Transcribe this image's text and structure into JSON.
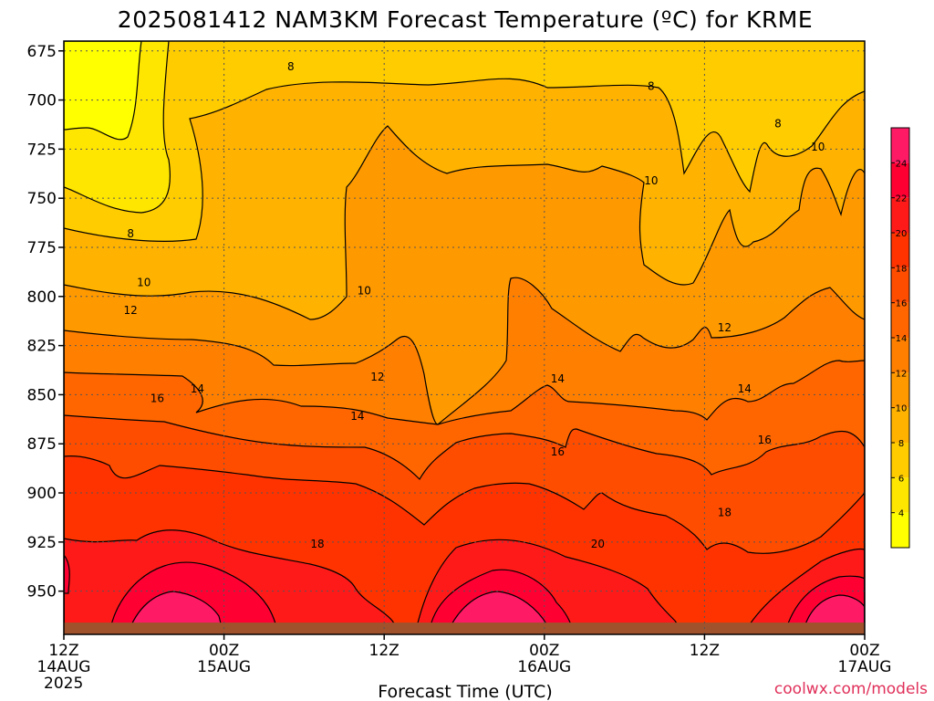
{
  "chart_data": {
    "type": "heatmap",
    "title": "2025081412 NAM3KM Forecast Temperature (ºC) for KRME",
    "xlabel": "Forecast Time (UTC)",
    "ylabel": "",
    "credit": "coolwx.com/models",
    "x_ticks": [
      {
        "hours": 0,
        "label": "12Z",
        "sub": "14AUG",
        "sub2": "2025"
      },
      {
        "hours": 12,
        "label": "00Z",
        "sub": "15AUG",
        "sub2": ""
      },
      {
        "hours": 24,
        "label": "12Z",
        "sub": "",
        "sub2": ""
      },
      {
        "hours": 36,
        "label": "00Z",
        "sub": "16AUG",
        "sub2": ""
      },
      {
        "hours": 48,
        "label": "12Z",
        "sub": "",
        "sub2": ""
      },
      {
        "hours": 60,
        "label": "00Z",
        "sub": "17AUG",
        "sub2": ""
      }
    ],
    "xlim_hours": [
      0,
      60
    ],
    "y_ticks": [
      {
        "value": 675,
        "label": "675"
      },
      {
        "value": 700,
        "label": "700"
      },
      {
        "value": 725,
        "label": "725"
      },
      {
        "value": 750,
        "label": "750"
      },
      {
        "value": 775,
        "label": "775"
      },
      {
        "value": 800,
        "label": "800"
      },
      {
        "value": 825,
        "label": "825"
      },
      {
        "value": 850,
        "label": "850"
      },
      {
        "value": 875,
        "label": "875"
      },
      {
        "value": 900,
        "label": "900"
      },
      {
        "value": 925,
        "label": "925"
      },
      {
        "value": 950,
        "label": "950"
      }
    ],
    "ylim_hpa": [
      670,
      972
    ],
    "surface_hpa": 966,
    "grid": true,
    "colorbar": {
      "placement": "right",
      "levels": [
        2,
        4,
        6,
        8,
        10,
        12,
        14,
        16,
        18,
        20,
        22,
        24,
        26
      ],
      "colors": [
        "#ffff00",
        "#ffe600",
        "#ffcc00",
        "#ffb300",
        "#ff9900",
        "#ff8000",
        "#ff6600",
        "#ff4d00",
        "#ff3300",
        "#ff1a1a",
        "#ff0033",
        "#ff1a66"
      ],
      "tick_labels": [
        "4",
        "6",
        "8",
        "10",
        "12",
        "14",
        "16",
        "18",
        "20",
        "22",
        "24"
      ]
    },
    "colors": {
      "terrain": "#a0522d",
      "contour": "#000000"
    },
    "contour_labels": [
      {
        "text": "8",
        "hours": 17.0,
        "hpa": 683
      },
      {
        "text": "8",
        "hours": 44.0,
        "hpa": 693
      },
      {
        "text": "8",
        "hours": 53.5,
        "hpa": 712
      },
      {
        "text": "10",
        "hours": 56.5,
        "hpa": 724
      },
      {
        "text": "10",
        "hours": 44.0,
        "hpa": 741
      },
      {
        "text": "8",
        "hours": 5.0,
        "hpa": 768
      },
      {
        "text": "10",
        "hours": 6.0,
        "hpa": 793
      },
      {
        "text": "10",
        "hours": 22.5,
        "hpa": 797
      },
      {
        "text": "12",
        "hours": 5.0,
        "hpa": 807
      },
      {
        "text": "12",
        "hours": 49.5,
        "hpa": 816
      },
      {
        "text": "12",
        "hours": 23.5,
        "hpa": 841
      },
      {
        "text": "14",
        "hours": 37.0,
        "hpa": 842
      },
      {
        "text": "14",
        "hours": 51.0,
        "hpa": 847
      },
      {
        "text": "14",
        "hours": 10.0,
        "hpa": 847
      },
      {
        "text": "16",
        "hours": 7.0,
        "hpa": 852
      },
      {
        "text": "14",
        "hours": 22.0,
        "hpa": 861
      },
      {
        "text": "16",
        "hours": 37.0,
        "hpa": 879
      },
      {
        "text": "16",
        "hours": 52.5,
        "hpa": 873
      },
      {
        "text": "18",
        "hours": 49.5,
        "hpa": 910
      },
      {
        "text": "18",
        "hours": 19.0,
        "hpa": 926
      },
      {
        "text": "20",
        "hours": 40.0,
        "hpa": 926
      }
    ]
  }
}
